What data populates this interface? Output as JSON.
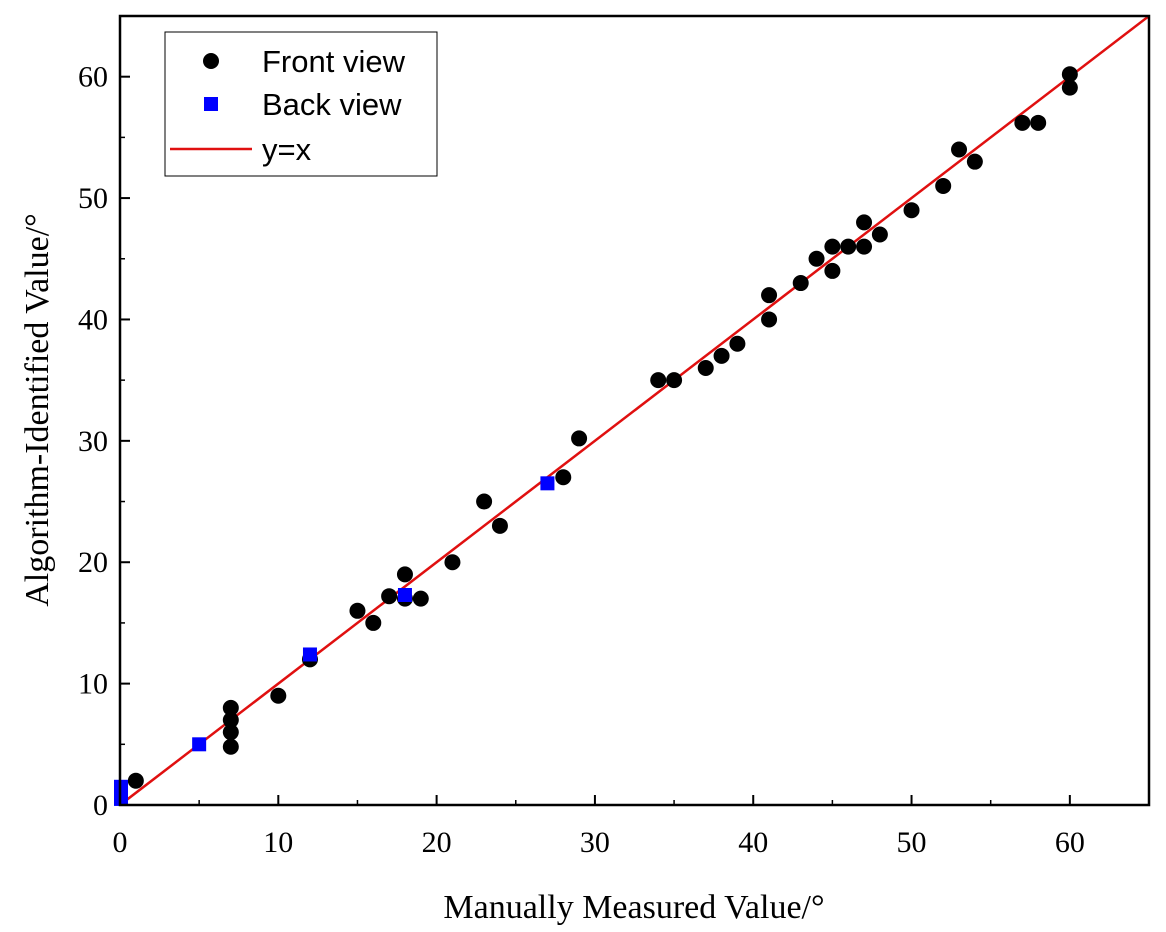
{
  "chart_data": {
    "type": "scatter",
    "title": "",
    "xlabel": "Manually Measured Value/°",
    "ylabel": "Algorithm-Identified Value/°",
    "xlim": [
      0,
      65
    ],
    "ylim": [
      0,
      65
    ],
    "xticks": [
      0,
      10,
      20,
      30,
      40,
      50,
      60
    ],
    "yticks": [
      0,
      10,
      20,
      30,
      40,
      50,
      60
    ],
    "xtick_labels": [
      "0",
      "10",
      "20",
      "30",
      "40",
      "50",
      "60"
    ],
    "ytick_labels": [
      "0",
      "10",
      "20",
      "30",
      "40",
      "50",
      "60"
    ],
    "grid": false,
    "legend_position": "top-left",
    "colors": {
      "front": "#000000",
      "back": "#0000ff",
      "line": "#e01010",
      "axis": "#000000"
    },
    "series": [
      {
        "name": "Front view",
        "marker": "circle",
        "points": [
          [
            1,
            2
          ],
          [
            7,
            8
          ],
          [
            7,
            7
          ],
          [
            7,
            6
          ],
          [
            7,
            4.8
          ],
          [
            10,
            9
          ],
          [
            12,
            12
          ],
          [
            15,
            16
          ],
          [
            16,
            15
          ],
          [
            17,
            17.2
          ],
          [
            18,
            19
          ],
          [
            18,
            17
          ],
          [
            19,
            17
          ],
          [
            21,
            20
          ],
          [
            23,
            25
          ],
          [
            24,
            23
          ],
          [
            28,
            27
          ],
          [
            29,
            30.2
          ],
          [
            34,
            35
          ],
          [
            35,
            35
          ],
          [
            37,
            36
          ],
          [
            38,
            37
          ],
          [
            39,
            38
          ],
          [
            41,
            42
          ],
          [
            41,
            40
          ],
          [
            43,
            43
          ],
          [
            44,
            45
          ],
          [
            45,
            46
          ],
          [
            45,
            44
          ],
          [
            46,
            46
          ],
          [
            47,
            48
          ],
          [
            47,
            46
          ],
          [
            48,
            47
          ],
          [
            50,
            49
          ],
          [
            52,
            51
          ],
          [
            53,
            54
          ],
          [
            54,
            53
          ],
          [
            57,
            56.2
          ],
          [
            58,
            56.2
          ],
          [
            60,
            60.2
          ],
          [
            60,
            59.1
          ]
        ]
      },
      {
        "name": "Back view",
        "marker": "square",
        "points": [
          [
            0,
            1.5
          ],
          [
            0,
            0.5
          ],
          [
            5,
            5
          ],
          [
            12,
            12.4
          ],
          [
            18,
            17.3
          ],
          [
            27,
            26.5
          ]
        ]
      },
      {
        "name": "y=x",
        "marker": "line",
        "points": [
          [
            0,
            0
          ],
          [
            65,
            65
          ]
        ]
      }
    ]
  }
}
